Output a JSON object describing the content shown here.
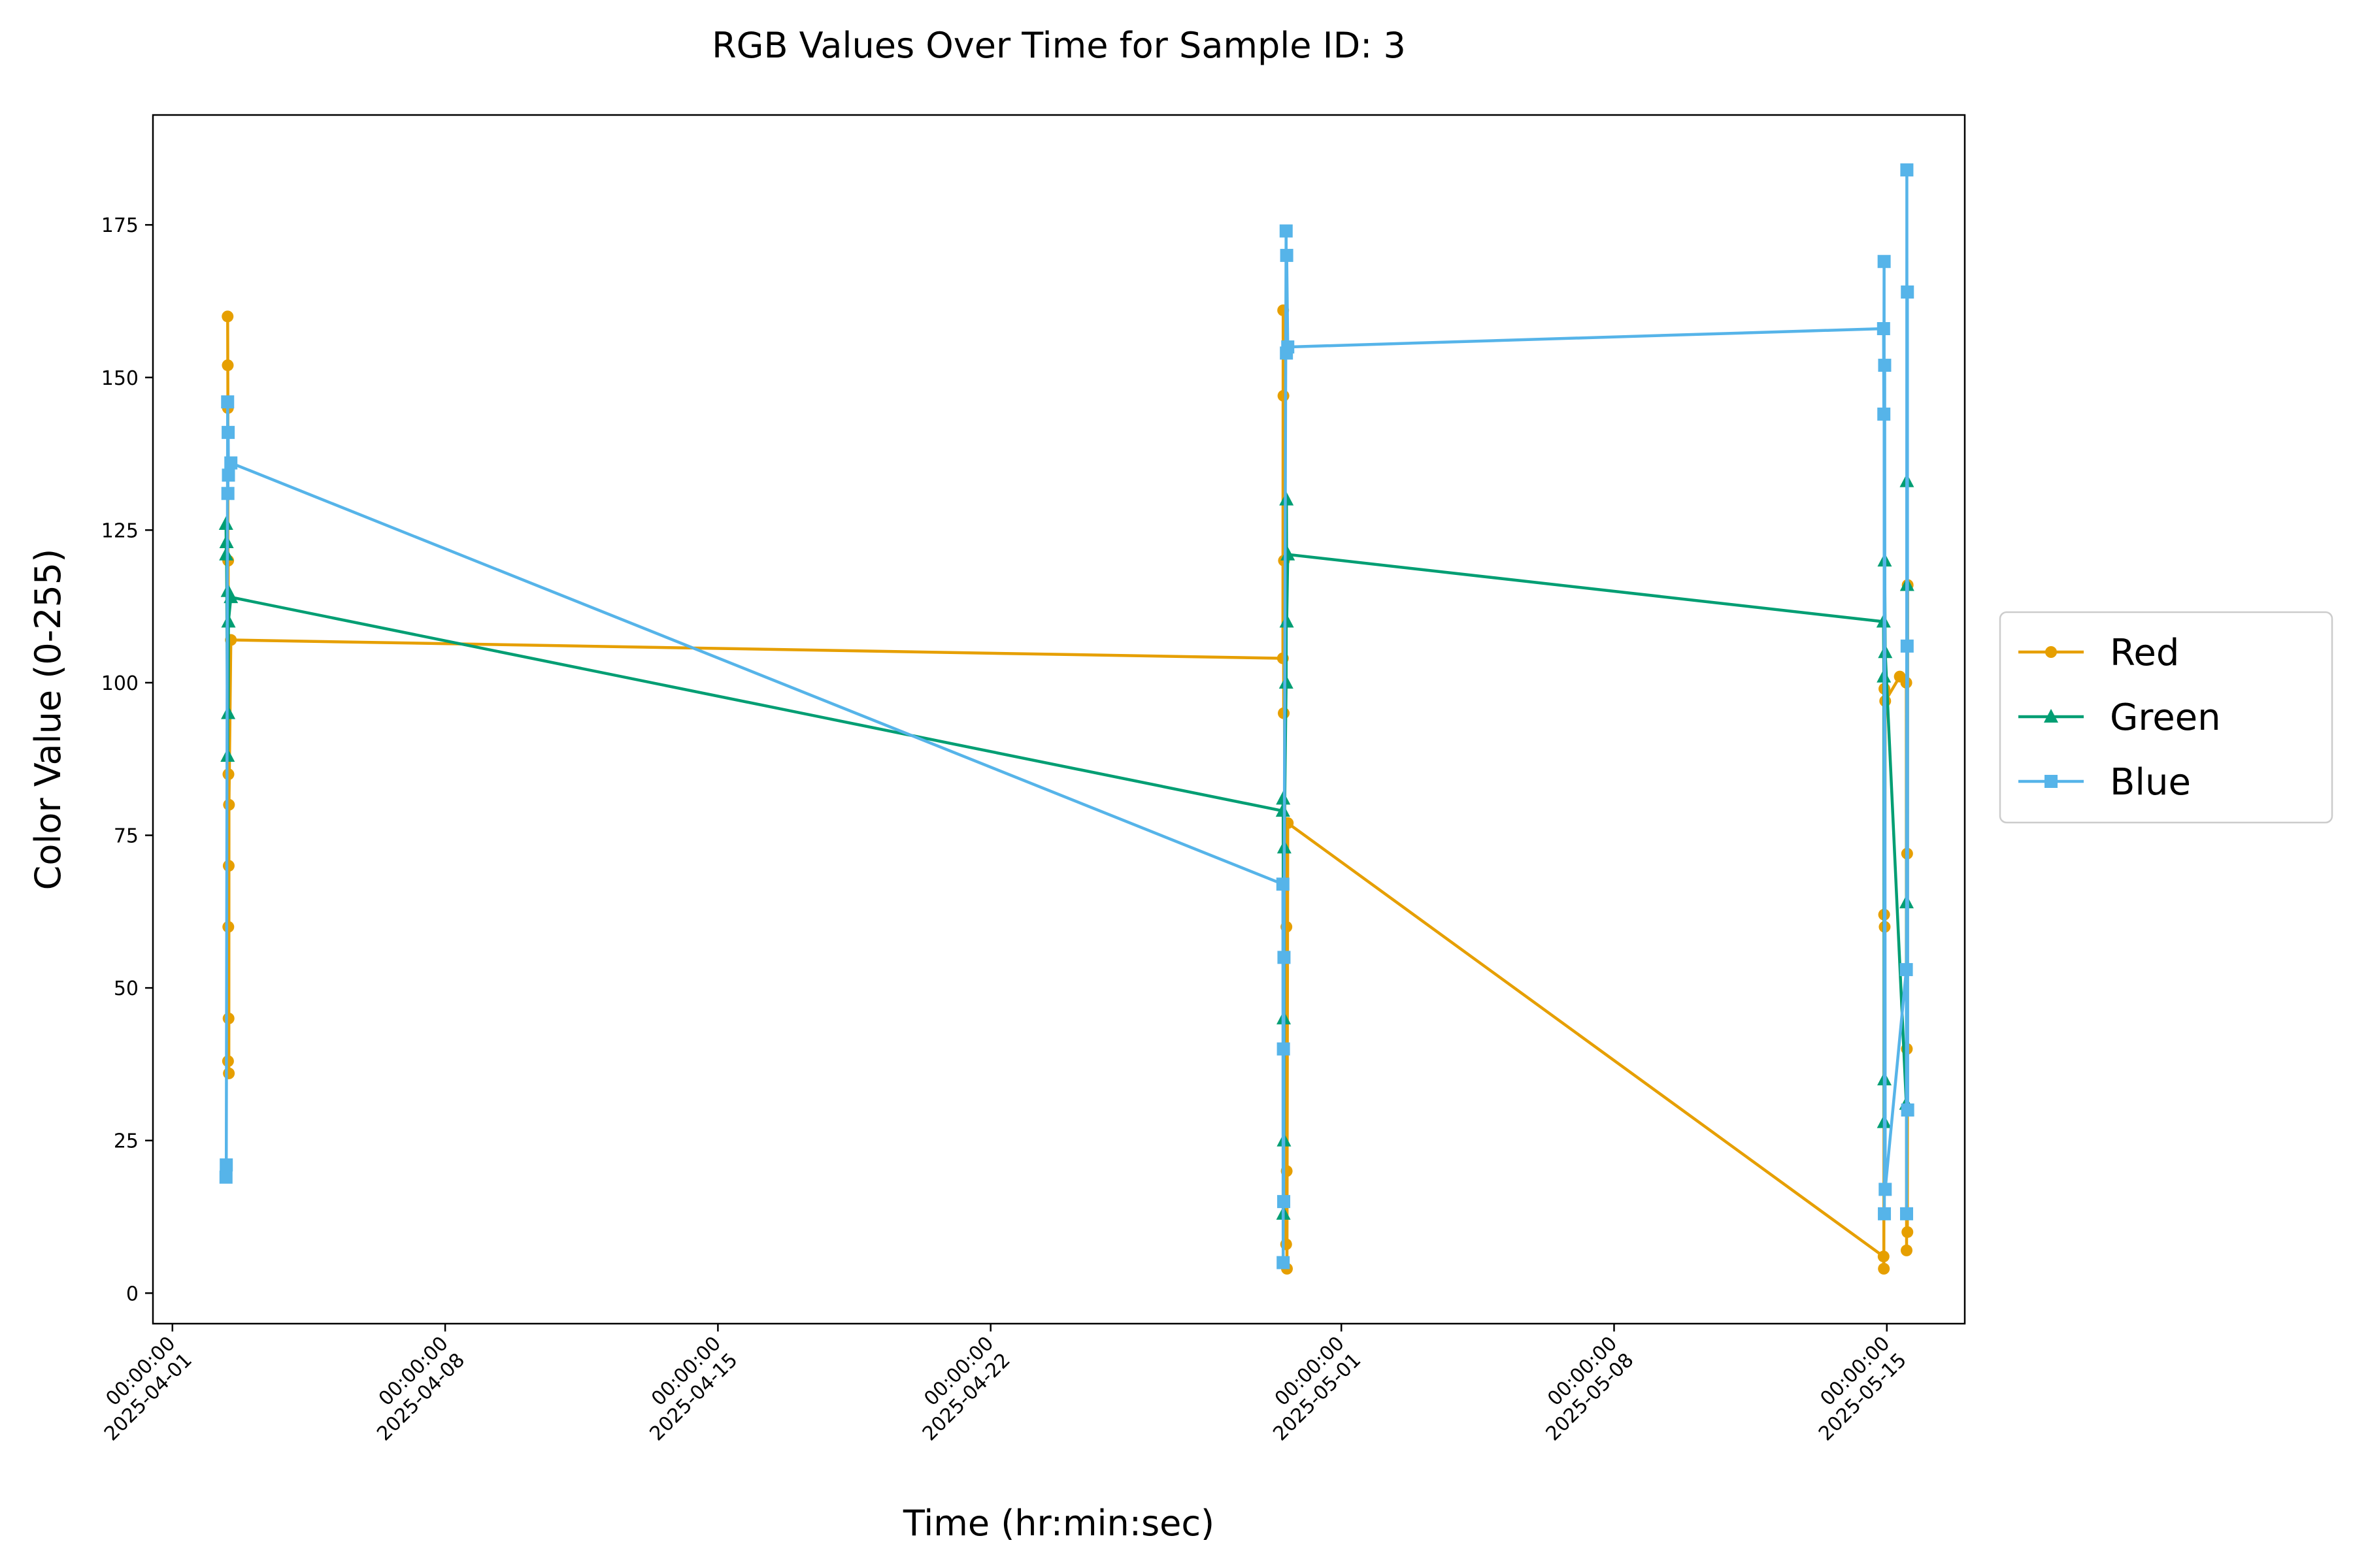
{
  "chart_data": {
    "type": "line",
    "title": "RGB Values Over Time for Sample ID: 3",
    "xlabel": "Time (hr:min:sec)",
    "ylabel": "Color Value (0-255)",
    "ylim": [
      -5,
      193
    ],
    "xlim": [
      "2025-03-31T12:00:00",
      "2025-05-17T00:00:00"
    ],
    "yticks": [
      0,
      25,
      50,
      75,
      100,
      125,
      150,
      175
    ],
    "xticks": [
      {
        "date": "2025-04-01",
        "time": "00:00:00",
        "label": "2025-04-01"
      },
      {
        "date": "2025-04-08",
        "time": "00:00:00",
        "label": "2025-04-08"
      },
      {
        "date": "2025-04-15",
        "time": "00:00:00",
        "label": "2025-04-15"
      },
      {
        "date": "2025-04-22",
        "time": "00:00:00",
        "label": "2025-04-22"
      },
      {
        "date": "2025-05-01",
        "time": "00:00:00",
        "label": "2025-05-01"
      },
      {
        "date": "2025-05-08",
        "time": "00:00:00",
        "label": "2025-05-08"
      },
      {
        "date": "2025-05-15",
        "time": "00:00:00",
        "label": "2025-05-15"
      }
    ],
    "grid": false,
    "legend": "outside-right",
    "series": [
      {
        "name": "Red",
        "color": "#E69F00",
        "marker": "circle",
        "points": [
          [
            "2025-04-02T10:00:00",
            160
          ],
          [
            "2025-04-02T10:05:00",
            152
          ],
          [
            "2025-04-02T10:10:00",
            145
          ],
          [
            "2025-04-02T10:15:00",
            38
          ],
          [
            "2025-04-02T10:20:00",
            120
          ],
          [
            "2025-04-02T10:25:00",
            60
          ],
          [
            "2025-04-02T10:30:00",
            85
          ],
          [
            "2025-04-02T10:35:00",
            45
          ],
          [
            "2025-04-02T10:40:00",
            70
          ],
          [
            "2025-04-02T10:45:00",
            36
          ],
          [
            "2025-04-02T10:50:00",
            80
          ],
          [
            "2025-04-02T12:00:00",
            107
          ],
          [
            "2025-04-29T12:00:00",
            104
          ],
          [
            "2025-04-29T12:10:00",
            161
          ],
          [
            "2025-04-29T12:20:00",
            147
          ],
          [
            "2025-04-29T12:30:00",
            95
          ],
          [
            "2025-04-29T12:40:00",
            120
          ],
          [
            "2025-04-29T14:00:00",
            8
          ],
          [
            "2025-04-29T14:10:00",
            60
          ],
          [
            "2025-04-29T14:20:00",
            20
          ],
          [
            "2025-04-29T14:30:00",
            4
          ],
          [
            "2025-04-29T15:00:00",
            77
          ],
          [
            "2025-05-14T22:00:00",
            6
          ],
          [
            "2025-05-14T22:10:00",
            4
          ],
          [
            "2025-05-14T22:20:00",
            62
          ],
          [
            "2025-05-14T22:30:00",
            99
          ],
          [
            "2025-05-14T22:40:00",
            60
          ],
          [
            "2025-05-14T23:00:00",
            97
          ],
          [
            "2025-05-15T08:00:00",
            101
          ],
          [
            "2025-05-15T12:00:00",
            100
          ],
          [
            "2025-05-15T12:10:00",
            7
          ],
          [
            "2025-05-15T12:20:00",
            40
          ],
          [
            "2025-05-15T12:30:00",
            72
          ],
          [
            "2025-05-15T12:40:00",
            10
          ],
          [
            "2025-05-15T12:50:00",
            116
          ]
        ]
      },
      {
        "name": "Green",
        "color": "#009E73",
        "marker": "triangle",
        "points": [
          [
            "2025-04-02T09:00:00",
            126
          ],
          [
            "2025-04-02T09:10:00",
            121
          ],
          [
            "2025-04-02T09:20:00",
            123
          ],
          [
            "2025-04-02T10:00:00",
            88
          ],
          [
            "2025-04-02T10:10:00",
            115
          ],
          [
            "2025-04-02T10:20:00",
            95
          ],
          [
            "2025-04-02T10:30:00",
            110
          ],
          [
            "2025-04-02T12:00:00",
            114
          ],
          [
            "2025-04-29T12:00:00",
            79
          ],
          [
            "2025-04-29T12:10:00",
            81
          ],
          [
            "2025-04-29T12:20:00",
            13
          ],
          [
            "2025-04-29T12:30:00",
            45
          ],
          [
            "2025-04-29T12:40:00",
            25
          ],
          [
            "2025-04-29T12:50:00",
            73
          ],
          [
            "2025-04-29T14:00:00",
            100
          ],
          [
            "2025-04-29T14:10:00",
            130
          ],
          [
            "2025-04-29T14:20:00",
            110
          ],
          [
            "2025-04-29T15:00:00",
            121
          ],
          [
            "2025-05-14T22:00:00",
            110
          ],
          [
            "2025-05-14T22:10:00",
            101
          ],
          [
            "2025-05-14T22:20:00",
            28
          ],
          [
            "2025-05-14T22:30:00",
            35
          ],
          [
            "2025-05-14T22:40:00",
            120
          ],
          [
            "2025-05-14T23:00:00",
            105
          ],
          [
            "2025-05-15T12:00:00",
            31
          ],
          [
            "2025-05-15T12:10:00",
            64
          ],
          [
            "2025-05-15T12:20:00",
            133
          ],
          [
            "2025-05-15T12:30:00",
            116
          ]
        ]
      },
      {
        "name": "Blue",
        "color": "#56B4E9",
        "marker": "square",
        "points": [
          [
            "2025-04-02T09:00:00",
            19
          ],
          [
            "2025-04-02T09:10:00",
            21
          ],
          [
            "2025-04-02T10:00:00",
            146
          ],
          [
            "2025-04-02T10:10:00",
            131
          ],
          [
            "2025-04-02T10:20:00",
            141
          ],
          [
            "2025-04-02T10:30:00",
            134
          ],
          [
            "2025-04-02T12:00:00",
            136
          ],
          [
            "2025-04-29T12:00:00",
            67
          ],
          [
            "2025-04-29T12:10:00",
            5
          ],
          [
            "2025-04-29T12:20:00",
            40
          ],
          [
            "2025-04-29T12:30:00",
            15
          ],
          [
            "2025-04-29T12:40:00",
            55
          ],
          [
            "2025-04-29T14:00:00",
            174
          ],
          [
            "2025-04-29T14:10:00",
            154
          ],
          [
            "2025-04-29T14:20:00",
            170
          ],
          [
            "2025-04-29T15:00:00",
            155
          ],
          [
            "2025-05-14T22:00:00",
            158
          ],
          [
            "2025-05-14T22:10:00",
            144
          ],
          [
            "2025-05-14T22:20:00",
            169
          ],
          [
            "2025-05-14T22:30:00",
            13
          ],
          [
            "2025-05-14T22:40:00",
            152
          ],
          [
            "2025-05-14T23:00:00",
            17
          ],
          [
            "2025-05-15T12:00:00",
            53
          ],
          [
            "2025-05-15T12:10:00",
            13
          ],
          [
            "2025-05-15T12:20:00",
            184
          ],
          [
            "2025-05-15T12:30:00",
            106
          ],
          [
            "2025-05-15T12:40:00",
            164
          ],
          [
            "2025-05-15T12:50:00",
            30
          ]
        ]
      }
    ]
  }
}
